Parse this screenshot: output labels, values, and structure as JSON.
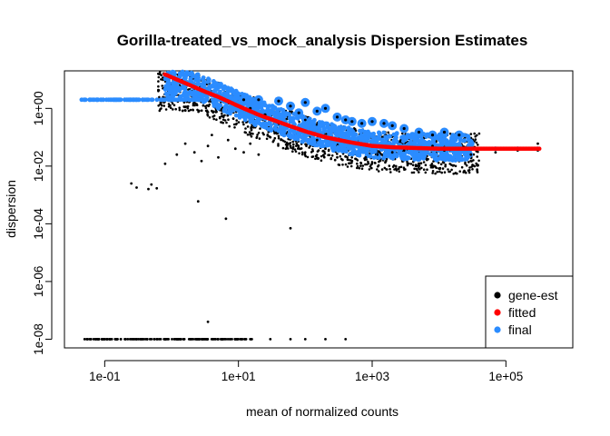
{
  "chart_data": {
    "type": "scatter",
    "title": "Gorilla-treated_vs_mock_analysis Dispersion Estimates",
    "xlabel": "mean of normalized counts",
    "ylabel": "dispersion",
    "x_scale": "log10",
    "y_scale": "log10",
    "xlim": [
      0.025,
      1000000
    ],
    "ylim": [
      5e-09,
      20
    ],
    "x_ticks": [
      {
        "value": 0.1,
        "label": "1e-01"
      },
      {
        "value": 10,
        "label": "1e+01"
      },
      {
        "value": 1000,
        "label": "1e+03"
      },
      {
        "value": 100000,
        "label": "1e+05"
      }
    ],
    "y_ticks": [
      {
        "value": 1e-08,
        "label": "1e-08"
      },
      {
        "value": 1e-06,
        "label": "1e-06"
      },
      {
        "value": 0.0001,
        "label": "1e-04"
      },
      {
        "value": 0.01,
        "label": "1e-02"
      },
      {
        "value": 1,
        "label": "1e+00"
      }
    ],
    "legend": {
      "position": "bottom-right",
      "entries": [
        {
          "label": "gene-est",
          "color": "#000000"
        },
        {
          "label": "fitted",
          "color": "#ff0000"
        },
        {
          "label": "final",
          "color": "#2b8cff"
        }
      ]
    },
    "series": [
      {
        "name": "gene-est",
        "color": "#000000",
        "points": [
          [
            0.05,
            1e-08
          ],
          [
            0.08,
            1e-08
          ],
          [
            0.12,
            1e-08
          ],
          [
            0.2,
            1e-08
          ],
          [
            0.3,
            1e-08
          ],
          [
            0.5,
            1e-08
          ],
          [
            0.8,
            1e-08
          ],
          [
            1.2,
            1e-08
          ],
          [
            2,
            1e-08
          ],
          [
            3,
            1e-08
          ],
          [
            5,
            1e-08
          ],
          [
            8,
            1e-08
          ],
          [
            15,
            1e-08
          ],
          [
            30,
            1e-08
          ],
          [
            60,
            1e-08
          ],
          [
            100,
            1e-08
          ],
          [
            200,
            1e-08
          ],
          [
            400,
            1e-08
          ],
          [
            3.5,
            4e-08
          ],
          [
            0.25,
            0.0025
          ],
          [
            0.3,
            0.0018
          ],
          [
            0.45,
            0.0016
          ],
          [
            0.5,
            0.0023
          ],
          [
            0.6,
            0.0017
          ],
          [
            2.5,
            0.0006
          ],
          [
            6.5,
            0.00015
          ],
          [
            60,
            7e-05
          ],
          [
            0.8,
            0.012
          ],
          [
            1.2,
            0.025
          ],
          [
            1.6,
            0.06
          ],
          [
            2.2,
            0.03
          ],
          [
            2.8,
            0.015
          ],
          [
            3.5,
            0.05
          ],
          [
            4,
            0.12
          ],
          [
            5,
            0.02
          ],
          [
            7,
            0.08
          ],
          [
            9,
            0.04
          ],
          [
            12,
            0.03
          ],
          [
            15,
            0.06
          ],
          [
            20,
            0.025
          ],
          [
            30,
            0.1
          ],
          [
            40,
            0.3
          ],
          [
            60,
            0.05
          ],
          [
            80,
            0.2
          ],
          [
            100,
            0.4
          ],
          [
            150,
            0.08
          ],
          [
            200,
            0.04
          ],
          [
            300,
            0.02
          ],
          [
            500,
            0.015
          ],
          [
            800,
            0.02
          ],
          [
            1200,
            0.025
          ],
          [
            2000,
            0.03
          ],
          [
            3000,
            0.035
          ],
          [
            5000,
            0.04
          ],
          [
            8000,
            0.05
          ],
          [
            12000,
            0.035
          ],
          [
            20000,
            0.04
          ],
          [
            30000,
            0.025
          ],
          [
            70000,
            0.03
          ],
          [
            150000,
            0.035
          ],
          [
            300000,
            0.06
          ],
          [
            300000,
            0.035
          ]
        ]
      },
      {
        "name": "final",
        "color": "#2b8cff",
        "points": [
          [
            0.05,
            2
          ],
          [
            0.08,
            2
          ],
          [
            0.12,
            2
          ],
          [
            0.2,
            2
          ],
          [
            0.3,
            2
          ],
          [
            0.5,
            2
          ],
          [
            0.8,
            2
          ],
          [
            1.2,
            2
          ],
          [
            3,
            2
          ],
          [
            6,
            2
          ],
          [
            12,
            2
          ],
          [
            20,
            2
          ],
          [
            15,
            1
          ],
          [
            25,
            0.6
          ],
          [
            40,
            1.8
          ],
          [
            60,
            1.2
          ],
          [
            80,
            0.7
          ],
          [
            100,
            1.6
          ],
          [
            150,
            0.8
          ],
          [
            200,
            1.0
          ],
          [
            300,
            0.5
          ],
          [
            400,
            0.4
          ],
          [
            500,
            0.35
          ],
          [
            700,
            0.3
          ],
          [
            1000,
            0.35
          ],
          [
            1500,
            0.3
          ],
          [
            2000,
            0.25
          ],
          [
            3000,
            0.2
          ],
          [
            5000,
            0.15
          ],
          [
            8000,
            0.12
          ],
          [
            12000,
            0.15
          ],
          [
            20000,
            0.12
          ],
          [
            30000,
            0.05
          ],
          [
            70000,
            0.04
          ],
          [
            150000,
            0.04
          ],
          [
            300000,
            0.04
          ]
        ]
      },
      {
        "name": "fitted",
        "color": "#ff0000",
        "points": [
          [
            1,
            12
          ],
          [
            2,
            6
          ],
          [
            3,
            4
          ],
          [
            5,
            2.5
          ],
          [
            10,
            1.2
          ],
          [
            20,
            0.6
          ],
          [
            50,
            0.28
          ],
          [
            100,
            0.16
          ],
          [
            200,
            0.1
          ],
          [
            500,
            0.065
          ],
          [
            1000,
            0.05
          ],
          [
            2000,
            0.045
          ],
          [
            5000,
            0.042
          ],
          [
            10000,
            0.04
          ],
          [
            20000,
            0.04
          ],
          [
            50000,
            0.04
          ],
          [
            100000,
            0.04
          ],
          [
            200000,
            0.04
          ],
          [
            300000,
            0.04
          ]
        ]
      }
    ]
  }
}
